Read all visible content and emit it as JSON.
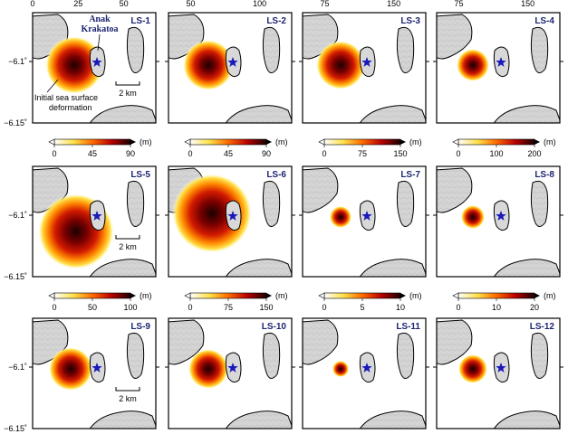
{
  "figure": {
    "axis": {
      "top_ticks_labels": [
        "0",
        "25",
        "50"
      ],
      "top_ticks_labels_partial": [
        "25",
        "50",
        "100",
        "75",
        "150"
      ],
      "lat_labels": [
        "−6.1˚",
        "−6.15˚"
      ]
    },
    "annotations": {
      "volcano_name_line1": "Anak",
      "volcano_name_line2": "Krakatoa",
      "deformation_line1": "Initial sea surface",
      "deformation_line2": "deformation",
      "scale_bar": "2 km"
    },
    "unit_label": "(m)",
    "colors": {
      "title": "#1d2470",
      "star": "#1a1ab8",
      "island_fill": "#d4d4d4",
      "contour": "#9a9a9a"
    },
    "rows": [
      {
        "panels": [
          {
            "title": "LS-1",
            "max": 90
          },
          {
            "title": "LS-2",
            "max": 90
          },
          {
            "title": "LS-3",
            "max": 150
          },
          {
            "title": "LS-4",
            "max": 200
          }
        ],
        "colorbars": [
          {
            "ticks": [
              "0",
              "45",
              "90"
            ]
          },
          {
            "ticks": [
              "0",
              "45",
              "90"
            ]
          },
          {
            "ticks": [
              "0",
              "75",
              "150"
            ]
          },
          {
            "ticks": [
              "0",
              "100",
              "200"
            ]
          }
        ]
      },
      {
        "panels": [
          {
            "title": "LS-5",
            "max": 100
          },
          {
            "title": "LS-6",
            "max": 150
          },
          {
            "title": "LS-7",
            "max": 10
          },
          {
            "title": "LS-8",
            "max": 20
          }
        ],
        "colorbars": [
          {
            "ticks": [
              "0",
              "50",
              "100"
            ]
          },
          {
            "ticks": [
              "0",
              "75",
              "150"
            ]
          },
          {
            "ticks": [
              "0",
              "5",
              "10"
            ]
          },
          {
            "ticks": [
              "0",
              "10",
              "20"
            ]
          }
        ]
      },
      {
        "panels": [
          {
            "title": "LS-9"
          },
          {
            "title": "LS-10"
          },
          {
            "title": "LS-11"
          },
          {
            "title": "LS-12"
          }
        ]
      }
    ],
    "top_tick_row": [
      {
        "labels": [
          "0",
          "25",
          "50"
        ]
      },
      {
        "labels": [
          "50",
          "100"
        ]
      },
      {
        "labels": [
          "75",
          "150"
        ]
      },
      {
        "labels": [
          "75",
          "150"
        ]
      }
    ]
  }
}
